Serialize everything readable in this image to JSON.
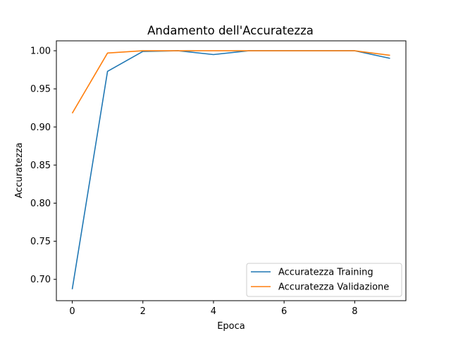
{
  "chart_data": {
    "type": "line",
    "title": "Andamento dell'Accuratezza",
    "xlabel": "Epoca",
    "ylabel": "Accuratezza",
    "x": [
      0,
      1,
      2,
      3,
      4,
      5,
      6,
      7,
      8,
      9
    ],
    "xlim": [
      -0.45,
      9.45
    ],
    "ylim": [
      0.672,
      1.013
    ],
    "xticks": [
      0,
      2,
      4,
      6,
      8
    ],
    "xtick_labels": [
      "0",
      "2",
      "4",
      "6",
      "8"
    ],
    "yticks": [
      0.7,
      0.75,
      0.8,
      0.85,
      0.9,
      0.95,
      1.0
    ],
    "ytick_labels": [
      "0.70",
      "0.75",
      "0.80",
      "0.85",
      "0.90",
      "0.95",
      "1.00"
    ],
    "grid": false,
    "legend_position": "lower-right",
    "series": [
      {
        "name": "Accuratezza Training",
        "color": "#1f77b4",
        "values": [
          0.687,
          0.973,
          0.999,
          1.0,
          0.995,
          1.0,
          1.0,
          1.0,
          1.0,
          0.99
        ]
      },
      {
        "name": "Accuratezza Validazione",
        "color": "#ff7f0e",
        "values": [
          0.918,
          0.997,
          1.0,
          1.0,
          1.0,
          1.0,
          1.0,
          1.0,
          1.0,
          0.994
        ]
      }
    ]
  }
}
